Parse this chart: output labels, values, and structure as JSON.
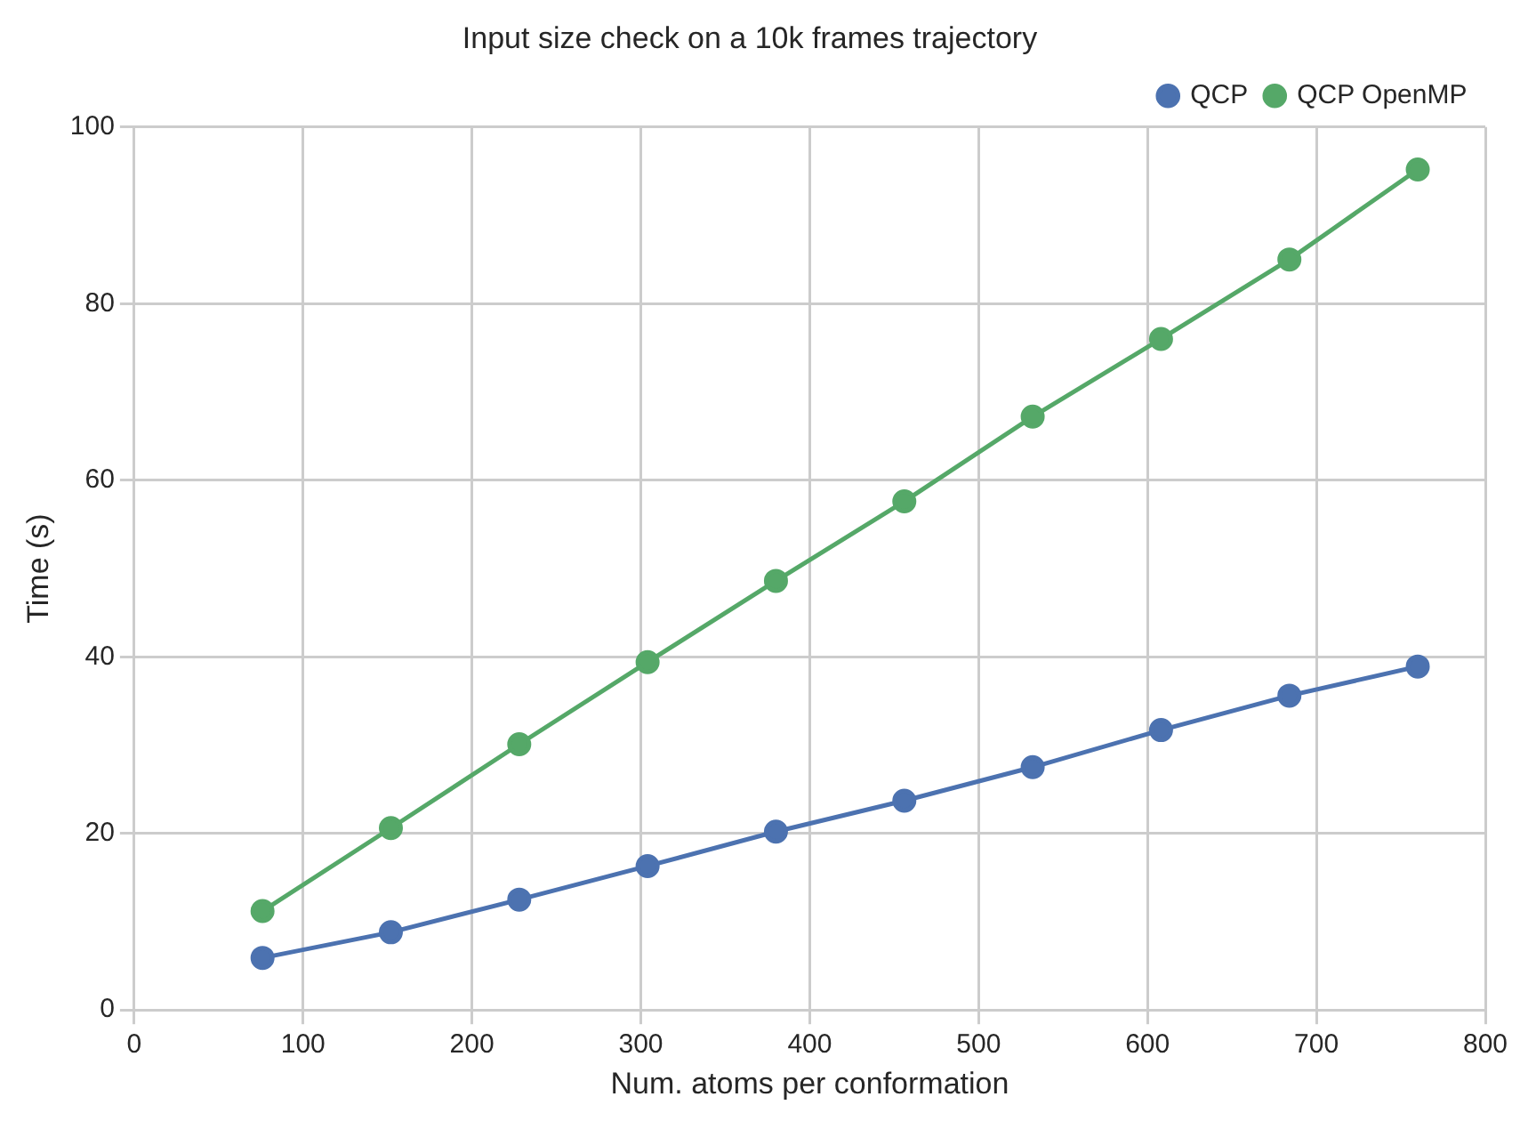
{
  "chart_data": {
    "type": "line",
    "title": "Input size check on a 10k frames trajectory",
    "xlabel": "Num. atoms per conformation",
    "ylabel": "Time (s)",
    "x": [
      76,
      152,
      228,
      304,
      380,
      456,
      532,
      608,
      684,
      760
    ],
    "series": [
      {
        "name": "QCP",
        "color": "#4c72b0",
        "values": [
          5.9,
          8.8,
          12.5,
          16.3,
          20.2,
          23.7,
          27.5,
          31.7,
          35.6,
          38.9
        ]
      },
      {
        "name": "QCP OpenMP",
        "color": "#55a868",
        "values": [
          11.2,
          20.6,
          30.1,
          39.4,
          48.6,
          57.6,
          67.2,
          76.0,
          85.0,
          95.2
        ]
      }
    ],
    "xlim": [
      0,
      800
    ],
    "xticks": [
      0,
      100,
      200,
      300,
      400,
      500,
      600,
      700,
      800
    ],
    "ylim": [
      0,
      100
    ],
    "yticks": [
      0,
      20,
      40,
      60,
      80,
      100
    ],
    "grid": true,
    "legend": "top right",
    "marker": "circle",
    "line_style": "solid"
  }
}
